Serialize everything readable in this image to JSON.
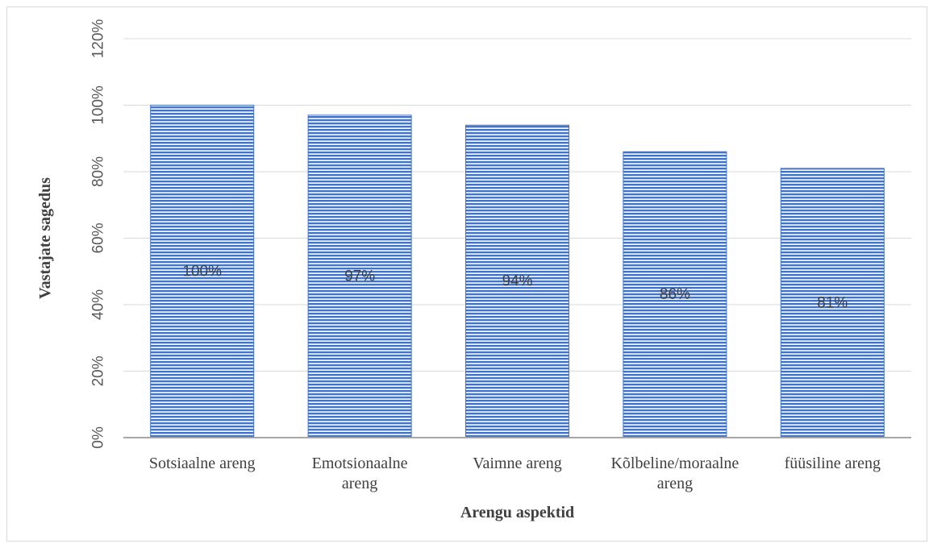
{
  "chart_data": {
    "type": "bar",
    "title": "",
    "xlabel": "Arengu aspektid",
    "ylabel": "Vastajate sagedus",
    "categories": [
      [
        "Sotsiaalne areng"
      ],
      [
        "Emotsionaalne",
        "areng"
      ],
      [
        "Vaimne areng"
      ],
      [
        "Kõlbeline/moraalne",
        "areng"
      ],
      [
        "füüsiline areng"
      ]
    ],
    "values": [
      100,
      97,
      94,
      86,
      81
    ],
    "data_labels": [
      "100%",
      "97%",
      "94%",
      "86%",
      "81%"
    ],
    "ylim": [
      0,
      120
    ],
    "yticks": [
      0,
      20,
      40,
      60,
      80,
      100,
      120
    ],
    "ytick_labels": [
      "0%",
      "20%",
      "40%",
      "60%",
      "80%",
      "100%",
      "120%"
    ],
    "grid": true,
    "legend": "none",
    "bar_color": "#4472C4",
    "bar_pattern": "horizontal-stripes"
  }
}
